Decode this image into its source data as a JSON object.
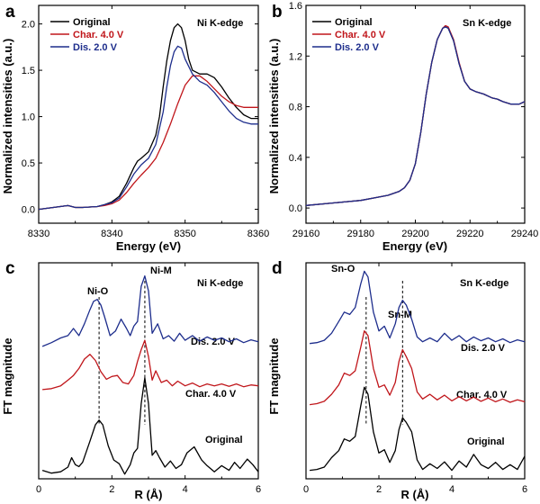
{
  "colors": {
    "original": "#000000",
    "charged": "#c0161b",
    "discharged": "#1d2d8c"
  },
  "panels": {
    "a": {
      "letter": "a",
      "edge_label": "Ni K-edge"
    },
    "b": {
      "letter": "b",
      "edge_label": "Sn K-edge"
    },
    "c": {
      "letter": "c",
      "edge_label": "Ni K-edge",
      "peak1": "Ni-O",
      "peak2": "Ni-M",
      "label_dis": "Dis. 2.0 V",
      "label_char": "Char. 4.0 V",
      "label_orig": "Original"
    },
    "d": {
      "letter": "d",
      "edge_label": "Sn K-edge",
      "peak1": "Sn-O",
      "peak2": "Sn-M",
      "label_dis": "Dis. 2.0 V",
      "label_char": "Char. 4.0 V",
      "label_orig": "Original"
    }
  },
  "chart_data": [
    {
      "panel": "a",
      "type": "line",
      "title": "Ni K-edge",
      "xlabel": "Energy (eV)",
      "ylabel": "Normalized intensities (a.u.)",
      "xlim": [
        8330,
        8360
      ],
      "ylim": [
        -0.15,
        2.2
      ],
      "xticks": [
        8330,
        8340,
        8350,
        8360
      ],
      "yticks": [
        0.0,
        0.5,
        1.0,
        1.5,
        2.0
      ],
      "legend": "top-left",
      "series": [
        {
          "name": "Original",
          "color": "#000000",
          "x": [
            8330,
            8332,
            8334,
            8335,
            8336,
            8338,
            8339,
            8340,
            8341,
            8342,
            8343,
            8343.5,
            8344,
            8345,
            8346,
            8346.5,
            8347,
            8347.5,
            8348,
            8348.5,
            8349,
            8349.5,
            8350,
            8350.5,
            8351,
            8352,
            8353,
            8354,
            8355,
            8356,
            8357,
            8358,
            8359,
            8360
          ],
          "y": [
            0.0,
            0.02,
            0.04,
            0.02,
            0.02,
            0.03,
            0.05,
            0.08,
            0.14,
            0.28,
            0.45,
            0.52,
            0.55,
            0.62,
            0.8,
            1.0,
            1.32,
            1.6,
            1.82,
            1.96,
            2.0,
            1.96,
            1.82,
            1.62,
            1.5,
            1.46,
            1.46,
            1.42,
            1.32,
            1.2,
            1.1,
            1.02,
            0.98,
            0.98
          ]
        },
        {
          "name": "Char. 4.0 V",
          "color": "#c0161b",
          "x": [
            8330,
            8332,
            8334,
            8335,
            8336,
            8338,
            8339,
            8340,
            8341,
            8342,
            8343,
            8344,
            8345,
            8346,
            8347,
            8348,
            8349,
            8350,
            8351,
            8352,
            8353,
            8354,
            8355,
            8356,
            8357,
            8358,
            8359,
            8360
          ],
          "y": [
            0.0,
            0.02,
            0.04,
            0.02,
            0.02,
            0.03,
            0.04,
            0.06,
            0.1,
            0.18,
            0.28,
            0.37,
            0.45,
            0.55,
            0.72,
            0.92,
            1.14,
            1.34,
            1.44,
            1.44,
            1.38,
            1.3,
            1.22,
            1.16,
            1.12,
            1.1,
            1.1,
            1.1
          ]
        },
        {
          "name": "Dis. 2.0 V",
          "color": "#1d2d8c",
          "x": [
            8330,
            8332,
            8334,
            8335,
            8336,
            8338,
            8339,
            8340,
            8341,
            8342,
            8343,
            8344,
            8345,
            8346,
            8347,
            8347.5,
            8348,
            8348.5,
            8349,
            8349.5,
            8350,
            8351,
            8352,
            8353,
            8354,
            8355,
            8356,
            8357,
            8358,
            8359,
            8360
          ],
          "y": [
            0.0,
            0.02,
            0.04,
            0.02,
            0.02,
            0.03,
            0.05,
            0.07,
            0.12,
            0.24,
            0.38,
            0.48,
            0.55,
            0.7,
            1.05,
            1.32,
            1.55,
            1.7,
            1.76,
            1.74,
            1.62,
            1.46,
            1.38,
            1.34,
            1.26,
            1.16,
            1.06,
            0.98,
            0.94,
            0.92,
            0.92
          ]
        }
      ]
    },
    {
      "panel": "b",
      "type": "line",
      "title": "Sn K-edge",
      "xlabel": "Energy (eV)",
      "ylabel": "Normalized intensities (a.u.)",
      "xlim": [
        29160,
        29240
      ],
      "ylim": [
        -0.12,
        1.6
      ],
      "xticks": [
        29160,
        29180,
        29200,
        29220,
        29240
      ],
      "yticks": [
        0.0,
        0.4,
        0.8,
        1.2,
        1.6
      ],
      "legend": "top-left",
      "series": [
        {
          "name": "Original",
          "color": "#000000",
          "x": [
            29160,
            29170,
            29180,
            29185,
            29190,
            29194,
            29196,
            29198,
            29200,
            29202,
            29204,
            29206,
            29208,
            29210,
            29211,
            29212,
            29214,
            29216,
            29218,
            29220,
            29222,
            29225,
            29228,
            29230,
            29232,
            29235,
            29238,
            29240
          ],
          "y": [
            0.02,
            0.04,
            0.06,
            0.08,
            0.1,
            0.13,
            0.16,
            0.22,
            0.35,
            0.6,
            0.9,
            1.15,
            1.33,
            1.42,
            1.43,
            1.42,
            1.32,
            1.14,
            1.0,
            0.94,
            0.92,
            0.9,
            0.87,
            0.86,
            0.84,
            0.82,
            0.82,
            0.84
          ]
        },
        {
          "name": "Char. 4.0 V",
          "color": "#c0161b",
          "x": [
            29160,
            29170,
            29180,
            29185,
            29190,
            29194,
            29196,
            29198,
            29200,
            29202,
            29204,
            29206,
            29208,
            29210,
            29211,
            29212,
            29214,
            29216,
            29218,
            29220,
            29222,
            29225,
            29228,
            29230,
            29232,
            29235,
            29238,
            29240
          ],
          "y": [
            0.02,
            0.04,
            0.06,
            0.08,
            0.1,
            0.13,
            0.16,
            0.22,
            0.35,
            0.6,
            0.9,
            1.15,
            1.33,
            1.42,
            1.44,
            1.43,
            1.33,
            1.15,
            1.0,
            0.94,
            0.92,
            0.9,
            0.87,
            0.86,
            0.84,
            0.82,
            0.82,
            0.84
          ]
        },
        {
          "name": "Dis. 2.0 V",
          "color": "#1d2d8c",
          "x": [
            29160,
            29170,
            29180,
            29185,
            29190,
            29194,
            29196,
            29198,
            29200,
            29202,
            29204,
            29206,
            29208,
            29210,
            29211,
            29212,
            29214,
            29216,
            29218,
            29220,
            29222,
            29225,
            29228,
            29230,
            29232,
            29235,
            29238,
            29240
          ],
          "y": [
            0.02,
            0.04,
            0.06,
            0.08,
            0.1,
            0.13,
            0.16,
            0.22,
            0.35,
            0.6,
            0.9,
            1.15,
            1.33,
            1.42,
            1.43,
            1.42,
            1.32,
            1.14,
            1.0,
            0.94,
            0.92,
            0.9,
            0.87,
            0.86,
            0.84,
            0.82,
            0.82,
            0.84
          ]
        }
      ]
    },
    {
      "panel": "c",
      "type": "line",
      "title": "Ni K-edge",
      "xlabel": "R (Å)",
      "ylabel": "FT magnitude",
      "xlim": [
        0,
        6
      ],
      "ylim": [
        0,
        4.6
      ],
      "xticks": [
        0,
        2,
        4,
        6
      ],
      "yticks": [],
      "annotations": [
        "Ni-O",
        "Ni-M",
        "Dis. 2.0 V",
        "Char. 4.0 V",
        "Original"
      ],
      "reference_lines_x": [
        1.65,
        2.9
      ],
      "series": [
        {
          "name": "Original",
          "color": "#000000",
          "x": [
            0.1,
            0.35,
            0.6,
            0.8,
            0.9,
            1.0,
            1.1,
            1.2,
            1.4,
            1.55,
            1.65,
            1.75,
            1.9,
            2.05,
            2.2,
            2.35,
            2.5,
            2.6,
            2.7,
            2.8,
            2.9,
            3.0,
            3.1,
            3.2,
            3.3,
            3.45,
            3.6,
            3.75,
            3.9,
            4.05,
            4.25,
            4.45,
            4.6,
            4.8,
            5.0,
            5.2,
            5.35,
            5.5,
            5.7,
            5.85,
            6.0
          ],
          "y": [
            0.18,
            0.12,
            0.15,
            0.25,
            0.45,
            0.3,
            0.26,
            0.35,
            0.8,
            1.15,
            1.25,
            1.15,
            0.7,
            0.4,
            0.32,
            0.1,
            0.3,
            0.55,
            0.65,
            1.6,
            2.15,
            1.6,
            0.5,
            0.6,
            0.45,
            0.25,
            0.38,
            0.22,
            0.3,
            0.55,
            0.68,
            0.4,
            0.28,
            0.15,
            0.28,
            0.18,
            0.35,
            0.22,
            0.42,
            0.3,
            0.15
          ]
        },
        {
          "name": "Char. 4.0 V",
          "color": "#c0161b",
          "x": [
            0.1,
            0.35,
            0.6,
            0.8,
            0.95,
            1.1,
            1.25,
            1.4,
            1.55,
            1.7,
            1.85,
            2.0,
            2.15,
            2.3,
            2.45,
            2.6,
            2.7,
            2.8,
            2.9,
            3.0,
            3.1,
            3.2,
            3.35,
            3.5,
            3.65,
            3.8,
            4.0,
            4.2,
            4.4,
            4.6,
            4.8,
            5.0,
            5.2,
            5.4,
            5.6,
            5.8,
            6.0
          ],
          "y": [
            1.9,
            1.92,
            1.98,
            2.1,
            2.2,
            2.35,
            2.55,
            2.65,
            2.52,
            2.28,
            2.12,
            2.18,
            2.2,
            2.05,
            2.02,
            2.2,
            2.5,
            2.75,
            2.95,
            2.6,
            2.1,
            2.3,
            2.05,
            2.1,
            1.98,
            2.08,
            1.98,
            2.04,
            1.96,
            2.02,
            1.98,
            2.02,
            1.97,
            2.02,
            1.96,
            2.0,
            1.98
          ]
        },
        {
          "name": "Dis. 2.0 V",
          "color": "#1d2d8c",
          "x": [
            0.1,
            0.35,
            0.6,
            0.8,
            0.95,
            1.1,
            1.25,
            1.4,
            1.5,
            1.6,
            1.7,
            1.8,
            1.95,
            2.1,
            2.25,
            2.4,
            2.5,
            2.6,
            2.7,
            2.8,
            2.9,
            3.0,
            3.1,
            3.25,
            3.4,
            3.55,
            3.7,
            3.85,
            4.0,
            4.2,
            4.4,
            4.6,
            4.8,
            5.0,
            5.2,
            5.4,
            5.6,
            5.8,
            6.0
          ],
          "y": [
            2.82,
            2.9,
            3.0,
            3.05,
            3.2,
            3.05,
            3.3,
            3.6,
            3.78,
            3.82,
            3.7,
            3.45,
            3.05,
            3.15,
            3.4,
            3.2,
            3.05,
            3.25,
            3.35,
            4.1,
            4.32,
            4.0,
            3.1,
            3.3,
            2.98,
            3.05,
            2.93,
            3.1,
            2.95,
            3.05,
            2.93,
            3.02,
            2.95,
            3.0,
            2.92,
            2.98,
            2.9,
            2.96,
            2.92
          ]
        }
      ]
    },
    {
      "panel": "d",
      "type": "line",
      "title": "Sn K-edge",
      "xlabel": "R (Å)",
      "ylabel": "FT magnitude",
      "xlim": [
        0,
        6
      ],
      "ylim": [
        0,
        4.6
      ],
      "xticks": [
        0,
        2,
        4,
        6
      ],
      "yticks": [],
      "annotations": [
        "Sn-O",
        "Sn-M",
        "Dis. 2.0 V",
        "Char. 4.0 V",
        "Original"
      ],
      "reference_lines_x": [
        1.65,
        2.65
      ],
      "series": [
        {
          "name": "Original",
          "color": "#000000",
          "x": [
            0.1,
            0.3,
            0.5,
            0.7,
            0.9,
            1.05,
            1.2,
            1.35,
            1.5,
            1.6,
            1.7,
            1.85,
            2.0,
            2.15,
            2.3,
            2.45,
            2.55,
            2.65,
            2.75,
            2.9,
            3.05,
            3.2,
            3.4,
            3.6,
            3.8,
            4.0,
            4.2,
            4.4,
            4.6,
            4.8,
            5.0,
            5.2,
            5.4,
            5.6,
            5.8,
            6.0
          ],
          "y": [
            0.18,
            0.2,
            0.25,
            0.45,
            0.6,
            0.85,
            0.8,
            0.9,
            1.55,
            1.95,
            1.8,
            1.0,
            0.55,
            0.62,
            0.35,
            0.6,
            1.05,
            1.3,
            1.2,
            1.0,
            0.4,
            0.2,
            0.32,
            0.22,
            0.36,
            0.18,
            0.38,
            0.25,
            0.52,
            0.3,
            0.22,
            0.35,
            0.2,
            0.3,
            0.2,
            0.48
          ]
        },
        {
          "name": "Char. 4.0 V",
          "color": "#c0161b",
          "x": [
            0.1,
            0.3,
            0.5,
            0.7,
            0.9,
            1.05,
            1.2,
            1.35,
            1.5,
            1.6,
            1.7,
            1.85,
            2.0,
            2.15,
            2.3,
            2.45,
            2.55,
            2.65,
            2.75,
            2.9,
            3.05,
            3.2,
            3.4,
            3.6,
            3.8,
            4.0,
            4.2,
            4.4,
            4.6,
            4.8,
            5.0,
            5.2,
            5.4,
            5.6,
            5.8,
            6.0
          ],
          "y": [
            1.58,
            1.6,
            1.65,
            1.8,
            2.0,
            2.25,
            2.2,
            2.3,
            2.8,
            3.15,
            3.05,
            2.35,
            1.95,
            2.0,
            1.78,
            2.05,
            2.5,
            2.75,
            2.6,
            2.35,
            1.85,
            1.7,
            1.8,
            1.68,
            1.78,
            1.66,
            1.75,
            1.66,
            1.74,
            1.65,
            1.72,
            1.64,
            1.7,
            1.63,
            1.68,
            1.64
          ]
        },
        {
          "name": "Dis. 2.0 V",
          "color": "#1d2d8c",
          "x": [
            0.1,
            0.3,
            0.5,
            0.7,
            0.9,
            1.05,
            1.2,
            1.35,
            1.5,
            1.6,
            1.7,
            1.85,
            2.0,
            2.15,
            2.3,
            2.45,
            2.55,
            2.65,
            2.75,
            2.9,
            3.05,
            3.2,
            3.4,
            3.6,
            3.8,
            4.0,
            4.2,
            4.4,
            4.6,
            4.8,
            5.0,
            5.2,
            5.4,
            5.6,
            5.8,
            6.0
          ],
          "y": [
            2.88,
            2.9,
            2.95,
            3.1,
            3.35,
            3.55,
            3.5,
            3.65,
            4.15,
            4.42,
            4.3,
            3.55,
            3.15,
            3.25,
            3.0,
            3.3,
            3.65,
            3.8,
            3.7,
            3.4,
            3.02,
            2.92,
            3.0,
            2.92,
            3.1,
            2.95,
            3.05,
            2.92,
            3.02,
            2.94,
            3.0,
            2.92,
            2.98,
            2.9,
            2.96,
            2.92
          ]
        }
      ]
    }
  ]
}
